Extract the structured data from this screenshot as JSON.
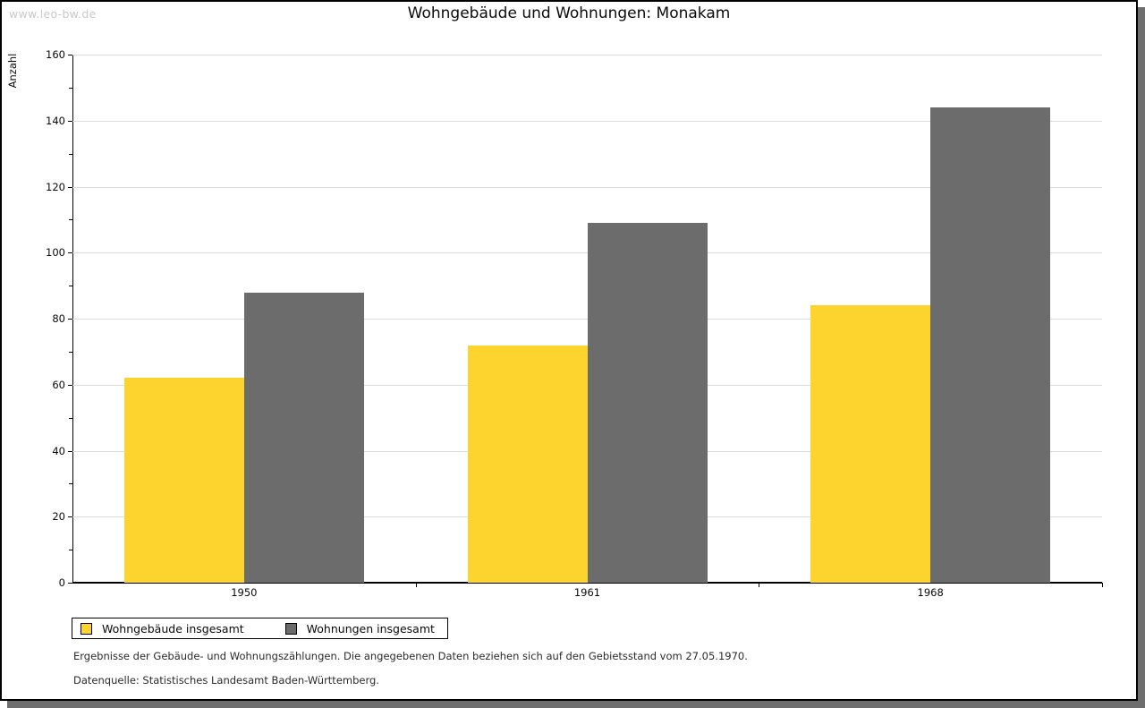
{
  "watermark": "www.leo-bw.de",
  "title": "Wohngebäude und Wohnungen: Monakam",
  "chart_data": {
    "type": "bar",
    "title": "Wohngebäude und Wohnungen: Monakam",
    "ylabel": "Anzahl",
    "xlabel": "",
    "categories": [
      "1950",
      "1961",
      "1968"
    ],
    "series": [
      {
        "name": "Wohngebäude insgesamt",
        "color": "#fdd42e",
        "values": [
          62,
          72,
          84
        ]
      },
      {
        "name": "Wohnungen insgesamt",
        "color": "#6c6c6c",
        "values": [
          88,
          109,
          144
        ]
      }
    ],
    "ylim": [
      0,
      160
    ],
    "ytick_interval": 20,
    "ytick_minor_interval": 10,
    "grid": true,
    "gridline_color": "#dcdcdc",
    "legend_position": "bottom-left"
  },
  "footnotes": {
    "line1": "Ergebnisse der Gebäude- und Wohnungszählungen. Die angegebenen Daten beziehen sich auf den Gebietsstand vom 27.05.1970.",
    "line2": "Datenquelle: Statistisches Landesamt Baden-Württemberg."
  }
}
